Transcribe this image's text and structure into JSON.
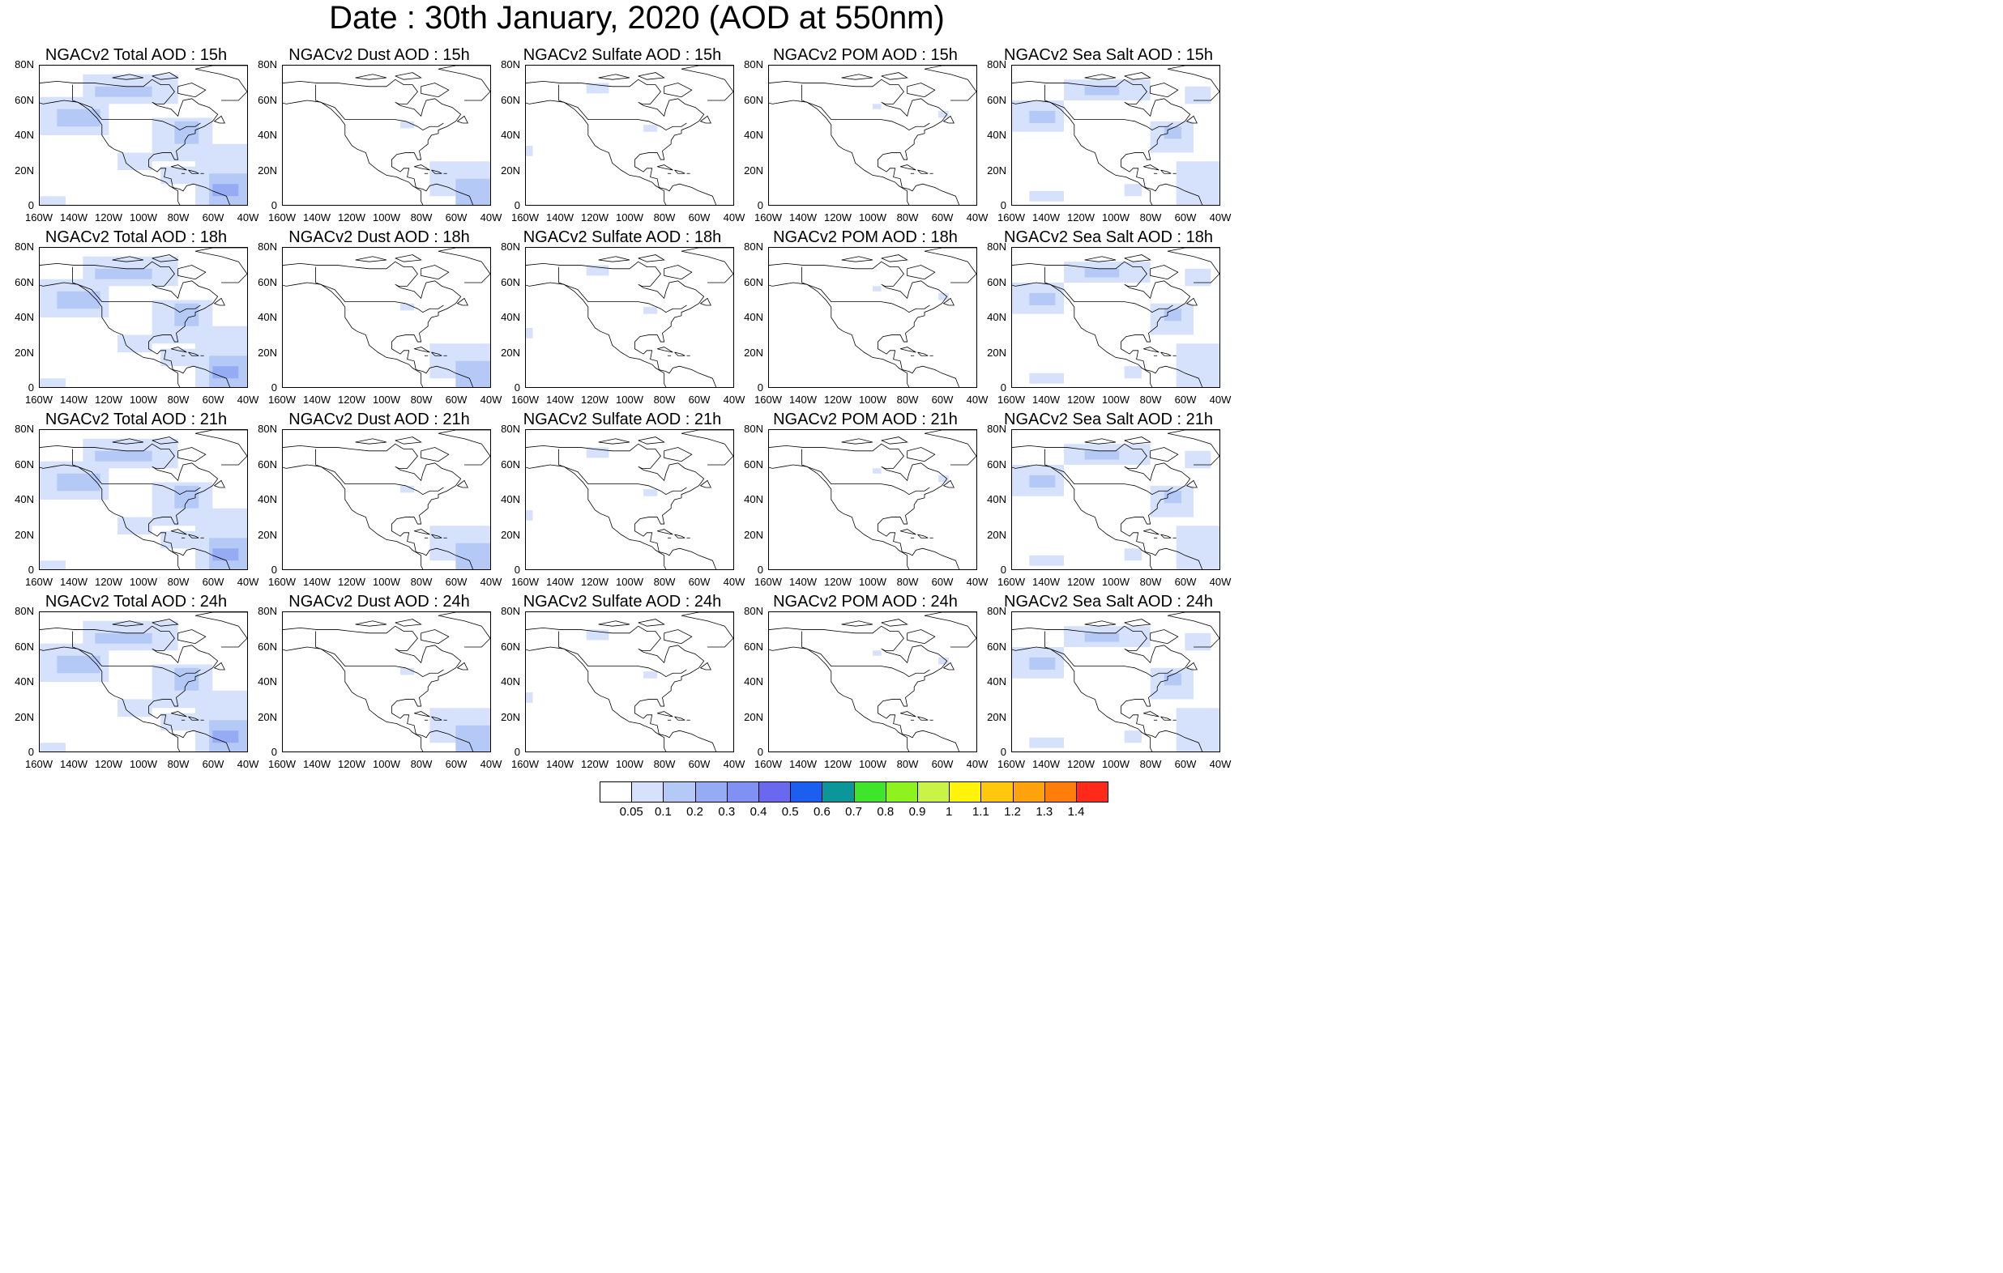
{
  "title": "Date : 30th January, 2020 (AOD at 550nm)",
  "lat_labels": [
    "80N",
    "60N",
    "40N",
    "20N",
    "0"
  ],
  "lon_labels": [
    "160W",
    "140W",
    "120W",
    "100W",
    "80W",
    "60W",
    "40W"
  ],
  "panels": [
    [
      {
        "title": "NGACv2 Total AOD : 15h",
        "species": "total"
      },
      {
        "title": "NGACv2 Dust AOD : 15h",
        "species": "dust"
      },
      {
        "title": "NGACv2 Sulfate AOD : 15h",
        "species": "sulfate"
      },
      {
        "title": "NGACv2 POM AOD : 15h",
        "species": "pom"
      },
      {
        "title": "NGACv2 Sea Salt AOD : 15h",
        "species": "seasalt"
      }
    ],
    [
      {
        "title": "NGACv2 Total AOD : 18h",
        "species": "total"
      },
      {
        "title": "NGACv2 Dust AOD : 18h",
        "species": "dust"
      },
      {
        "title": "NGACv2 Sulfate AOD : 18h",
        "species": "sulfate"
      },
      {
        "title": "NGACv2 POM AOD : 18h",
        "species": "pom"
      },
      {
        "title": "NGACv2 Sea Salt AOD : 18h",
        "species": "seasalt"
      }
    ],
    [
      {
        "title": "NGACv2 Total AOD : 21h",
        "species": "total"
      },
      {
        "title": "NGACv2 Dust AOD : 21h",
        "species": "dust"
      },
      {
        "title": "NGACv2 Sulfate AOD : 21h",
        "species": "sulfate"
      },
      {
        "title": "NGACv2 POM AOD : 21h",
        "species": "pom"
      },
      {
        "title": "NGACv2 Sea Salt AOD : 21h",
        "species": "seasalt"
      }
    ],
    [
      {
        "title": "NGACv2 Total AOD : 24h",
        "species": "total"
      },
      {
        "title": "NGACv2 Dust AOD : 24h",
        "species": "dust"
      },
      {
        "title": "NGACv2 Sulfate AOD : 24h",
        "species": "sulfate"
      },
      {
        "title": "NGACv2 POM AOD : 24h",
        "species": "pom"
      },
      {
        "title": "NGACv2 Sea Salt  AOD : 24h",
        "species": "seasalt"
      }
    ]
  ],
  "colorbar": {
    "labels": [
      "0.05",
      "0.1",
      "0.2",
      "0.3",
      "0.4",
      "0.5",
      "0.6",
      "0.7",
      "0.8",
      "0.9",
      "1",
      "1.1",
      "1.2",
      "1.3",
      "1.4"
    ],
    "colors": [
      "#ffffff",
      "#d6e2fb",
      "#b5c9f7",
      "#95acf5",
      "#7f91f2",
      "#6a68ee",
      "#1c5ff0",
      "#0b9699",
      "#3fe52a",
      "#8ef21f",
      "#c9f447",
      "#fff30c",
      "#ffc70e",
      "#ffa20b",
      "#ff7d0a",
      "#ff2a1a"
    ]
  },
  "colors": {
    "aod_light": "#d6e2fb",
    "aod_mid": "#b5c9f7",
    "aod_high": "#95acf5",
    "coastline": "#000000"
  }
}
